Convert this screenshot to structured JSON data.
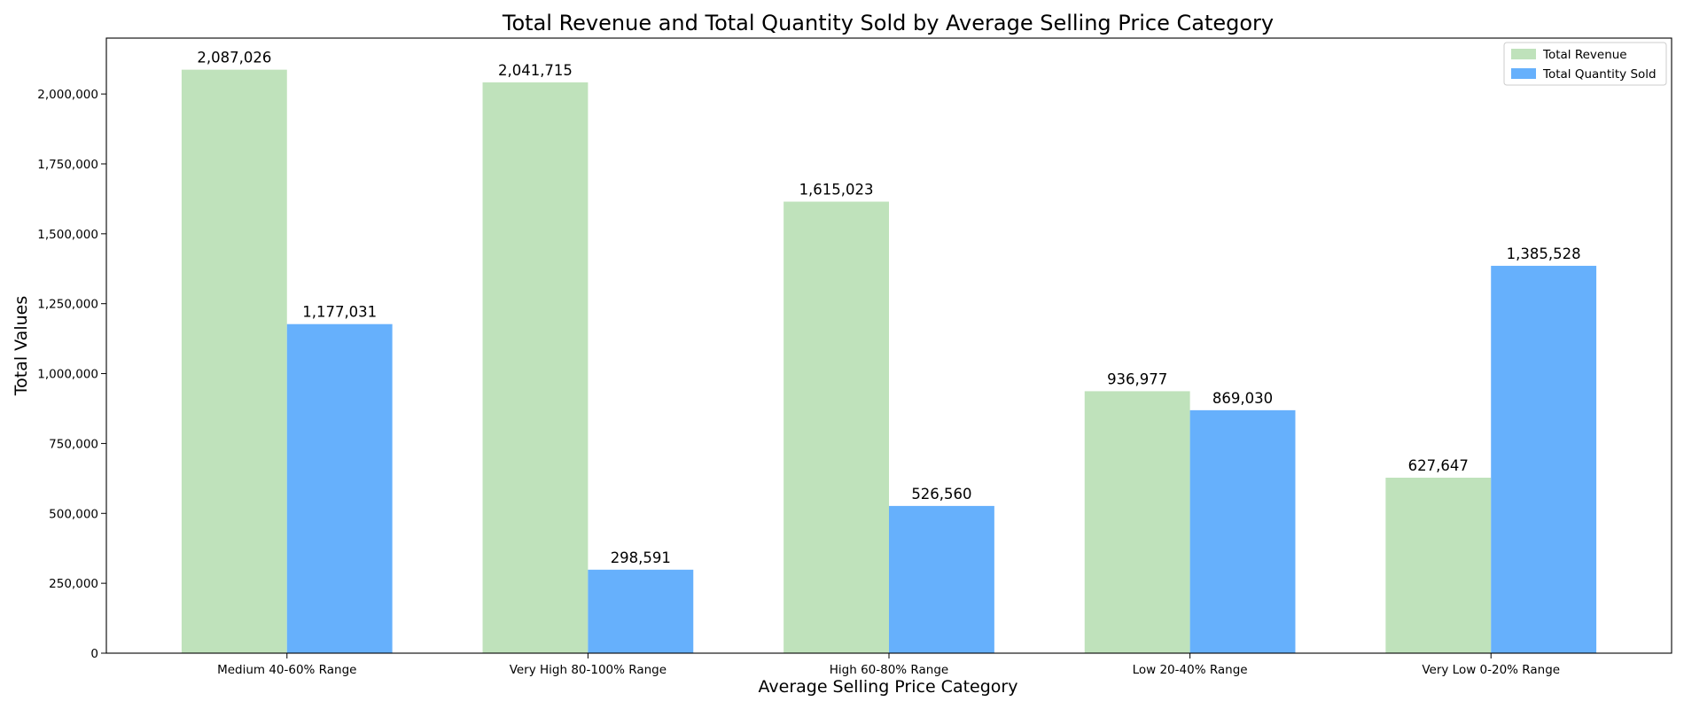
{
  "chart_data": {
    "type": "bar",
    "title": "Total Revenue and Total Quantity Sold by Average Selling Price Category",
    "xlabel": "Average Selling Price Category",
    "ylabel": "Total Values",
    "categories": [
      "Medium 40-60% Range",
      "Very High 80-100% Range",
      "High 60-80% Range",
      "Low 20-40% Range",
      "Very Low 0-20% Range"
    ],
    "series": [
      {
        "name": "Total Revenue",
        "color": "#bfe2bb",
        "values": [
          2087026,
          2041715,
          1615023,
          936977,
          627647
        ],
        "labels": [
          "2,087,026",
          "2,041,715",
          "1,615,023",
          "936,977",
          "627,647"
        ]
      },
      {
        "name": "Total Quantity Sold",
        "color": "#66b0fc",
        "values": [
          1177031,
          298591,
          526560,
          869030,
          1385528
        ],
        "labels": [
          "1,177,031",
          "298,591",
          "526,560",
          "869,030",
          "1,385,528"
        ]
      }
    ],
    "ylim": [
      0,
      2200000
    ],
    "yticks": [
      0,
      250000,
      500000,
      750000,
      1000000,
      1250000,
      1500000,
      1750000,
      2000000
    ],
    "ytick_labels": [
      "0",
      "250,000",
      "500,000",
      "750,000",
      "1,000,000",
      "1,250,000",
      "1,500,000",
      "1,750,000",
      "2,000,000"
    ],
    "grid": false,
    "legend": "top-right"
  }
}
